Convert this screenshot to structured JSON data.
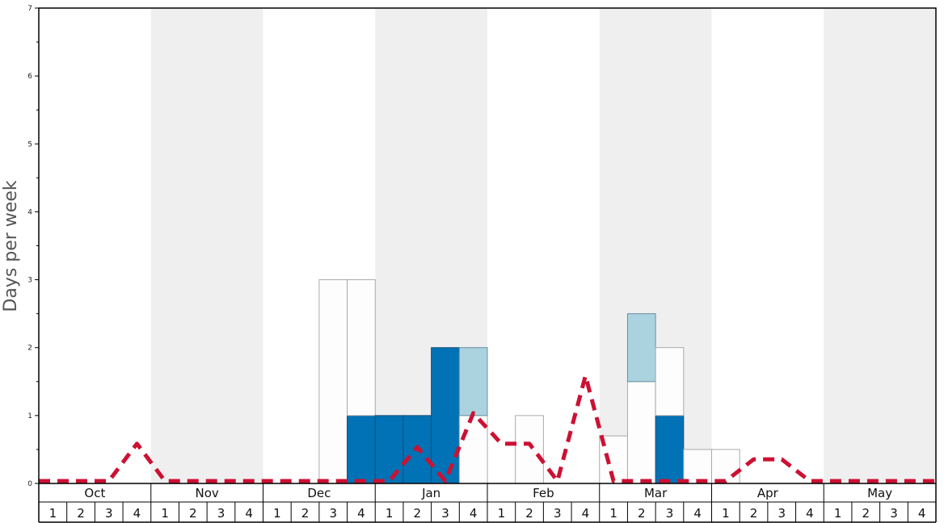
{
  "chart_data": {
    "type": "bar",
    "stacked": true,
    "ylabel": "Days per week",
    "ylim": [
      0,
      7
    ],
    "yticks": [
      "0",
      "1",
      "2",
      "3",
      "4",
      "5",
      "6",
      "7"
    ],
    "months": [
      "Oct",
      "Nov",
      "Dec",
      "Jan",
      "Feb",
      "Mar",
      "Apr",
      "May"
    ],
    "weeks": [
      "1",
      "2",
      "3",
      "4"
    ],
    "shaded_months": [
      "Nov",
      "Jan",
      "Mar",
      "May"
    ],
    "colors": {
      "dark": "#0072b5",
      "light": "#aad3df",
      "white": "#fdfdfd",
      "outline": "#aaaaaa",
      "line": "#cc1133",
      "band": "#efefef",
      "axis": "#000000"
    },
    "series": [
      {
        "segment": "dark",
        "values": [
          0,
          0,
          0,
          0,
          0,
          0,
          0,
          0,
          0,
          0,
          0,
          1,
          1,
          1,
          2,
          0,
          0,
          0,
          0,
          0,
          0,
          0,
          1,
          0,
          0,
          0,
          0,
          0,
          0,
          0,
          0,
          0
        ]
      },
      {
        "segment": "white",
        "values": [
          0,
          0,
          0,
          0,
          0,
          0,
          0,
          0,
          0,
          0,
          3,
          2,
          0,
          0,
          0,
          1,
          0,
          1,
          0,
          0,
          0.7,
          1.5,
          1,
          0.5,
          0.5,
          0,
          0,
          0,
          0,
          0,
          0,
          0
        ]
      },
      {
        "segment": "light",
        "values": [
          0,
          0,
          0,
          0,
          0,
          0,
          0,
          0,
          0,
          0,
          0,
          0,
          0,
          0,
          0,
          1,
          0,
          0,
          0,
          0,
          0,
          1,
          0,
          0,
          0,
          0,
          0,
          0,
          0,
          0,
          0,
          0
        ]
      }
    ],
    "line": {
      "style": "dashed",
      "values": [
        0,
        0,
        0,
        0.55,
        0,
        0,
        0,
        0,
        0,
        0,
        0,
        0,
        0,
        0.5,
        0,
        1,
        0.55,
        0.55,
        0,
        1.55,
        0,
        0,
        0,
        0,
        0,
        0.32,
        0.32,
        0,
        0,
        0,
        0,
        0
      ]
    }
  }
}
